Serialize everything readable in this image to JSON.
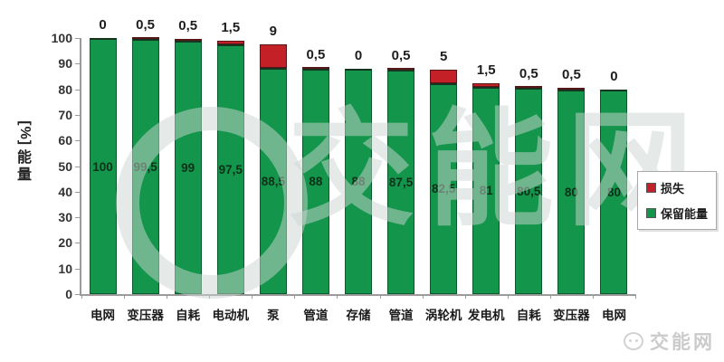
{
  "y_axis": {
    "title_unit": "[%]",
    "title_chars": [
      "能",
      "量"
    ],
    "ticks": [
      "100",
      "90",
      "80",
      "70",
      "60",
      "50",
      "40",
      "30",
      "20",
      "10",
      "0"
    ]
  },
  "legend": {
    "items": [
      {
        "label": "损失",
        "color": "#c32027"
      },
      {
        "label": "保留能量",
        "color": "#13954b"
      }
    ]
  },
  "watermark": {
    "center_text": "交能网",
    "corner_text": "交能网"
  },
  "chart_data": {
    "type": "bar",
    "stacked": true,
    "title": "",
    "xlabel": "",
    "ylabel": "能量 [%]",
    "ylim": [
      0,
      100
    ],
    "grid": false,
    "legend_position": "right",
    "categories": [
      "电网",
      "变压器",
      "自耗",
      "电动机",
      "泵",
      "管道",
      "存储",
      "管道",
      "涡轮机",
      "发电机",
      "自耗",
      "变压器",
      "电网"
    ],
    "series": [
      {
        "name": "保留能量",
        "color": "#13954b",
        "values": [
          100,
          99.5,
          99,
          97.5,
          88.5,
          88,
          88,
          87.5,
          82.5,
          81,
          80.5,
          80,
          80
        ]
      },
      {
        "name": "损失",
        "color": "#c32027",
        "values": [
          0,
          0.5,
          0.5,
          1.5,
          9,
          0.5,
          0,
          0.5,
          5,
          1.5,
          0.5,
          0.5,
          0
        ]
      }
    ],
    "retained_labels": [
      "100",
      "99,5",
      "99",
      "97,5",
      "88,5",
      "88",
      "88",
      "87,5",
      "82,5",
      "81",
      "80,5",
      "80",
      "80"
    ],
    "loss_labels": [
      "0",
      "0,5",
      "0,5",
      "1,5",
      "9",
      "0,5",
      "0",
      "0,5",
      "5",
      "1,5",
      "0,5",
      "0,5",
      "0"
    ]
  }
}
